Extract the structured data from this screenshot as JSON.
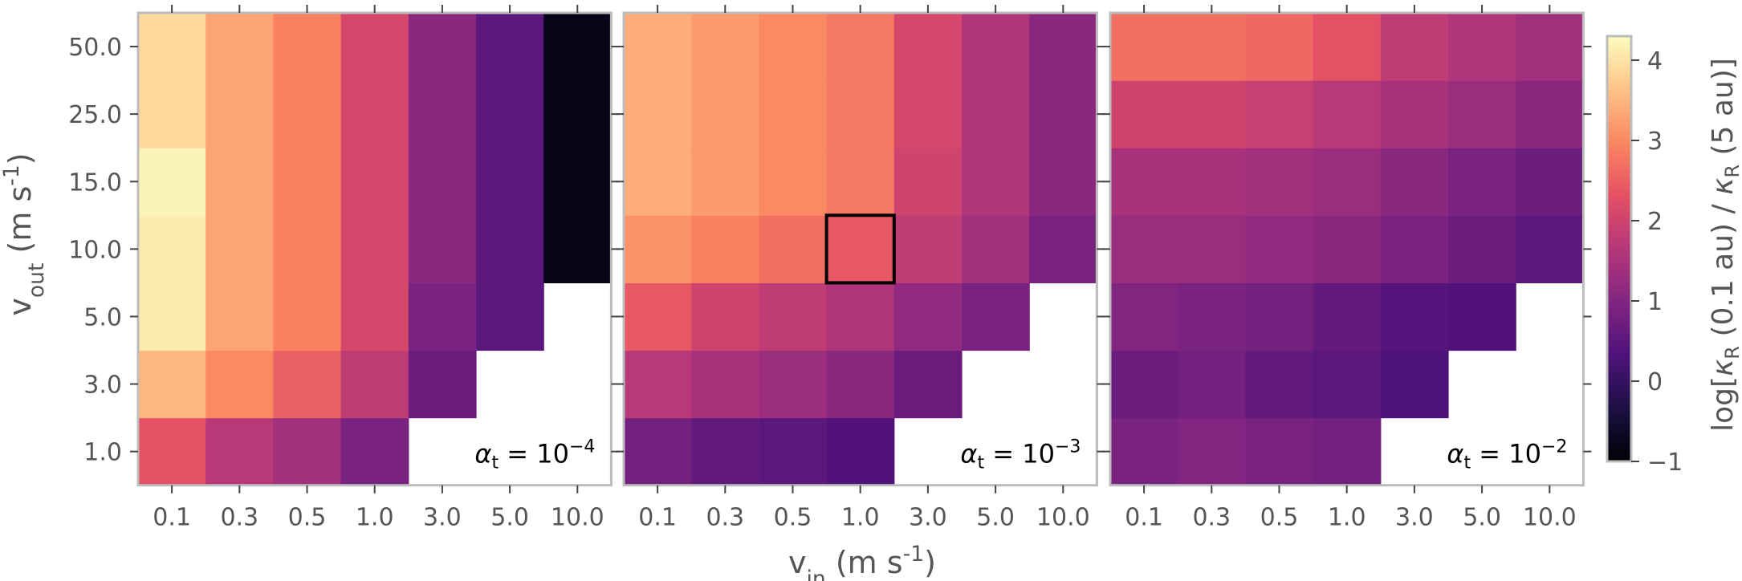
{
  "chart_data": {
    "type": "heatmap",
    "xlabel": "v_in (m s^-1)",
    "ylabel": "v_out (m s^-1)",
    "x_categories": [
      "0.1",
      "0.3",
      "0.5",
      "1.0",
      "3.0",
      "5.0",
      "10.0"
    ],
    "y_categories": [
      "1.0",
      "3.0",
      "5.0",
      "10.0",
      "15.0",
      "25.0",
      "50.0"
    ],
    "colorbar": {
      "label": "log[κ_R (0.1 au) / κ_R (5 au)]",
      "range": [
        -1,
        4.3
      ],
      "ticks": [
        "−1",
        "0",
        "1",
        "2",
        "3",
        "4"
      ],
      "colormap": "magma"
    },
    "panels": [
      {
        "annotation": "α_t = 10^-4",
        "values": [
          [
            2.3,
            1.7,
            1.4,
            0.9,
            null,
            null,
            null
          ],
          [
            3.5,
            3.0,
            2.5,
            1.8,
            0.7,
            null,
            null
          ],
          [
            4.1,
            3.3,
            2.9,
            2.1,
            0.9,
            0.5,
            null
          ],
          [
            4.1,
            3.3,
            2.9,
            2.1,
            1.1,
            0.5,
            -0.8
          ],
          [
            4.2,
            3.3,
            2.9,
            2.1,
            1.1,
            0.5,
            -0.8
          ],
          [
            3.9,
            3.3,
            2.9,
            2.1,
            1.1,
            0.5,
            -0.8
          ],
          [
            3.9,
            3.3,
            2.9,
            2.1,
            1.1,
            0.5,
            -0.8
          ]
        ]
      },
      {
        "annotation": "α_t = 10^-3",
        "highlight": {
          "x": "1.0",
          "y": "10.0"
        },
        "values": [
          [
            0.8,
            0.6,
            0.5,
            0.35,
            null,
            null,
            null
          ],
          [
            1.7,
            1.5,
            1.3,
            1.1,
            0.7,
            null,
            null
          ],
          [
            2.4,
            2.0,
            1.8,
            1.6,
            1.2,
            0.9,
            null
          ],
          [
            3.1,
            2.9,
            2.7,
            2.4,
            1.8,
            1.4,
            0.9
          ],
          [
            3.4,
            3.2,
            3.0,
            2.8,
            2.0,
            1.6,
            1.1
          ],
          [
            3.4,
            3.2,
            3.0,
            2.8,
            2.1,
            1.6,
            1.1
          ],
          [
            3.4,
            3.2,
            3.0,
            2.8,
            2.1,
            1.6,
            1.1
          ]
        ]
      },
      {
        "annotation": "α_t = 10^-2",
        "values": [
          [
            0.9,
            1.0,
            0.9,
            0.8,
            null,
            null,
            null
          ],
          [
            0.7,
            0.8,
            0.6,
            0.5,
            0.3,
            null,
            null
          ],
          [
            1.0,
            0.9,
            0.8,
            0.6,
            0.4,
            0.35,
            null
          ],
          [
            1.3,
            1.3,
            1.2,
            1.1,
            0.9,
            0.7,
            0.5
          ],
          [
            1.5,
            1.5,
            1.4,
            1.3,
            1.1,
            0.9,
            0.7
          ],
          [
            2.0,
            2.0,
            1.9,
            1.7,
            1.5,
            1.3,
            1.1
          ],
          [
            2.7,
            2.7,
            2.6,
            2.3,
            1.8,
            1.6,
            1.4
          ]
        ]
      }
    ]
  }
}
